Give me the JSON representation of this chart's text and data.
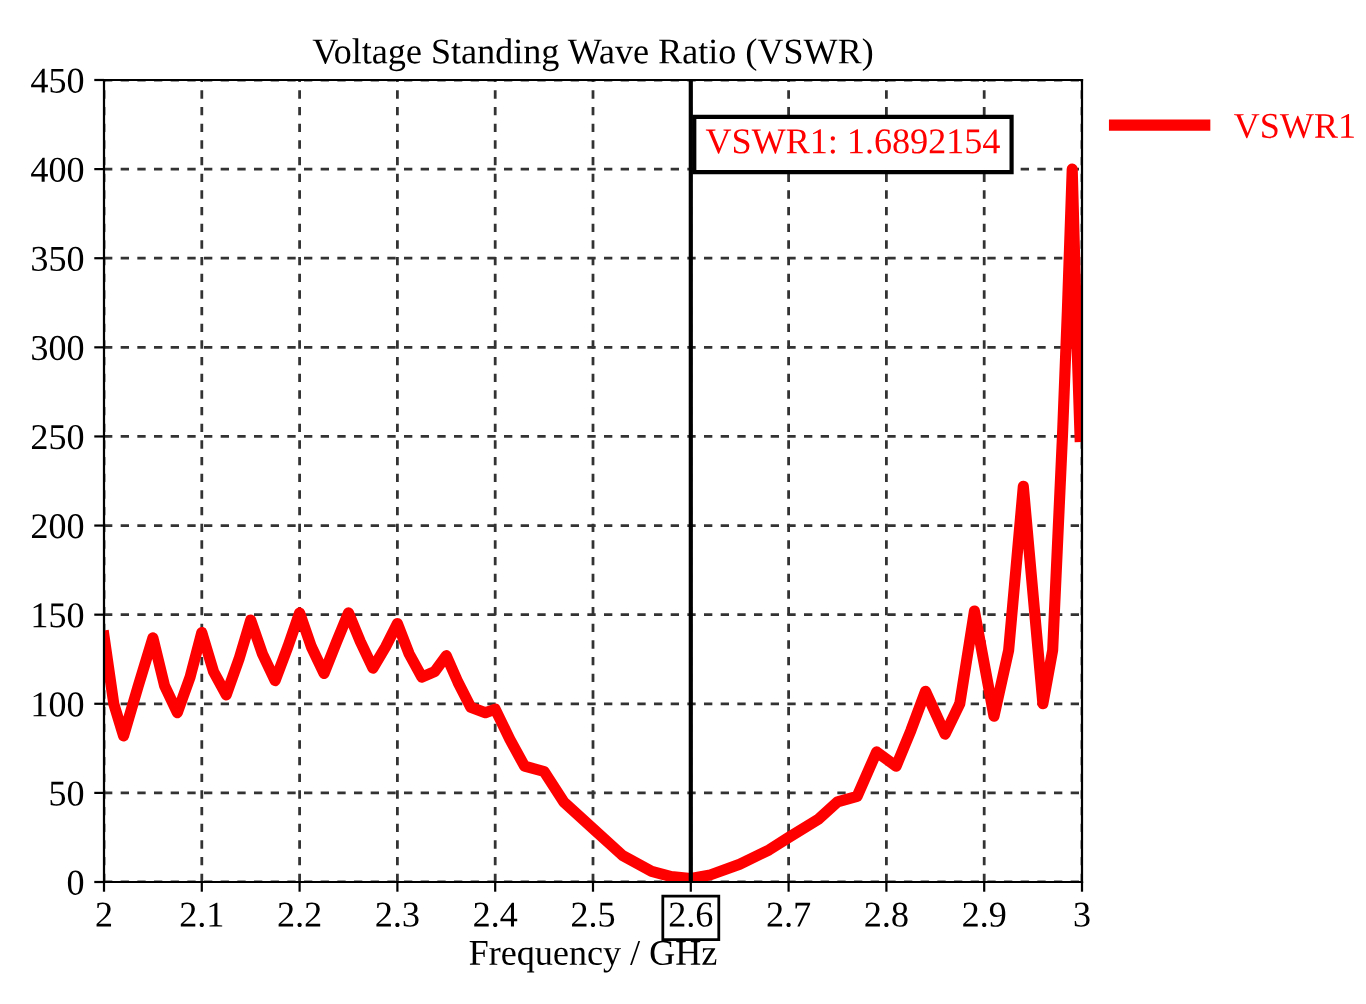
{
  "chart_data": {
    "type": "line",
    "title": "Voltage Standing Wave Ratio (VSWR)",
    "xlabel": "Frequency / GHz",
    "series": [
      {
        "name": "VSWR1",
        "color": "#ff0000",
        "x": [
          2.0,
          2.01,
          2.02,
          2.035,
          2.05,
          2.062,
          2.075,
          2.088,
          2.1,
          2.112,
          2.125,
          2.138,
          2.15,
          2.162,
          2.175,
          2.188,
          2.2,
          2.212,
          2.225,
          2.238,
          2.25,
          2.262,
          2.275,
          2.288,
          2.3,
          2.312,
          2.325,
          2.338,
          2.35,
          2.362,
          2.375,
          2.39,
          2.4,
          2.415,
          2.43,
          2.45,
          2.47,
          2.5,
          2.53,
          2.56,
          2.58,
          2.6,
          2.62,
          2.65,
          2.68,
          2.7,
          2.73,
          2.75,
          2.77,
          2.79,
          2.81,
          2.825,
          2.84,
          2.86,
          2.875,
          2.89,
          2.91,
          2.925,
          2.94,
          2.96,
          2.97,
          2.98,
          2.985,
          2.99,
          2.995,
          2.998
        ],
        "values": [
          138,
          100,
          82,
          110,
          137,
          110,
          95,
          115,
          140,
          118,
          105,
          125,
          147,
          128,
          113,
          132,
          151,
          132,
          117,
          135,
          151,
          135,
          120,
          132,
          145,
          128,
          115,
          118,
          127,
          112,
          98,
          95,
          97,
          80,
          65,
          62,
          45,
          30,
          15,
          6,
          3,
          2,
          4,
          10,
          18,
          25,
          35,
          45,
          48,
          73,
          65,
          85,
          107,
          83,
          100,
          152,
          93,
          130,
          222,
          100,
          130,
          250,
          320,
          400,
          300,
          250
        ]
      }
    ],
    "xlim": [
      2,
      3
    ],
    "ylim": [
      0,
      450
    ],
    "xticks": [
      2,
      2.1,
      2.2,
      2.3,
      2.4,
      2.5,
      2.6,
      2.7,
      2.8,
      2.9,
      3
    ],
    "yticks": [
      0,
      50,
      100,
      150,
      200,
      250,
      300,
      350,
      400,
      450
    ],
    "ref_lines": [
      {
        "axis": "x",
        "value": 2.6,
        "color": "#000000"
      }
    ],
    "annotations": [
      "VSWR1: 1.6892154"
    ],
    "grid": true,
    "legend": "top right",
    "line_style": "solid"
  }
}
